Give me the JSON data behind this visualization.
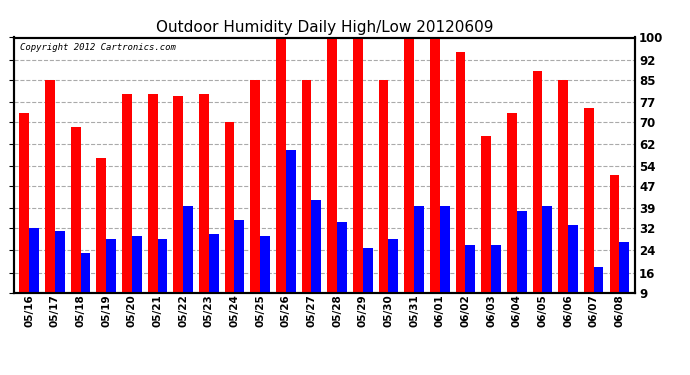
{
  "title": "Outdoor Humidity Daily High/Low 20120609",
  "copyright": "Copyright 2012 Cartronics.com",
  "categories": [
    "05/16",
    "05/17",
    "05/18",
    "05/19",
    "05/20",
    "05/21",
    "05/22",
    "05/23",
    "05/24",
    "05/25",
    "05/26",
    "05/27",
    "05/28",
    "05/29",
    "05/30",
    "05/31",
    "06/01",
    "06/02",
    "06/03",
    "06/04",
    "06/05",
    "06/06",
    "06/07",
    "06/08"
  ],
  "high_values": [
    73,
    85,
    68,
    57,
    80,
    80,
    79,
    80,
    70,
    85,
    100,
    85,
    100,
    100,
    85,
    100,
    100,
    95,
    65,
    73,
    88,
    85,
    75,
    51
  ],
  "low_values": [
    32,
    31,
    23,
    28,
    29,
    28,
    40,
    30,
    35,
    29,
    60,
    42,
    34,
    25,
    28,
    40,
    40,
    26,
    26,
    38,
    40,
    33,
    18,
    27
  ],
  "high_color": "#ff0000",
  "low_color": "#0000ff",
  "bg_color": "#ffffff",
  "plot_bg_color": "#ffffff",
  "grid_color": "#aaaaaa",
  "yticks": [
    9,
    16,
    24,
    32,
    39,
    47,
    54,
    62,
    70,
    77,
    85,
    92,
    100
  ],
  "ymin": 9,
  "ymax": 100,
  "title_fontsize": 11
}
